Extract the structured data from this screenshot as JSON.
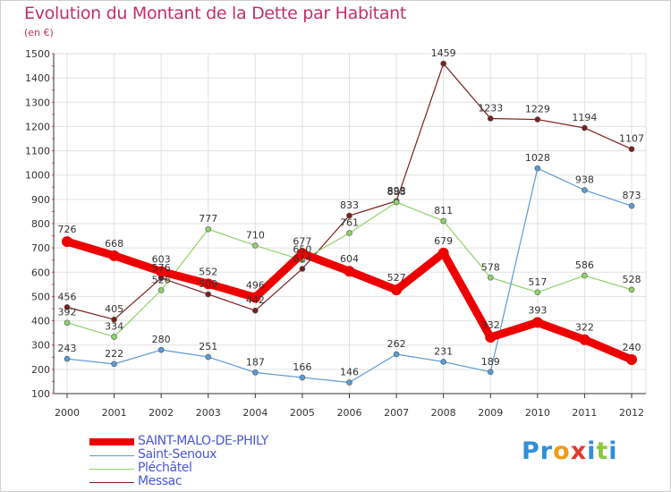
{
  "title": "Evolution du Montant de la Dette par Habitant",
  "unit": "(en €)",
  "logo": {
    "text": "Proxiti",
    "letter_colors": [
      "#2f8fd8",
      "#2f8fd8",
      "#f39a1c",
      "#e23a2c",
      "#2f8fd8",
      "#8cc63f",
      "#2f8fd8"
    ]
  },
  "chart_data": {
    "type": "line",
    "x": [
      "2000",
      "2001",
      "2002",
      "2003",
      "2004",
      "2005",
      "2006",
      "2007",
      "2008",
      "2009",
      "2010",
      "2011",
      "2012"
    ],
    "ylim": [
      100,
      1500
    ],
    "yticks": [
      100,
      200,
      300,
      400,
      500,
      600,
      700,
      800,
      900,
      1000,
      1100,
      1200,
      1300,
      1400,
      1500
    ],
    "grid": true,
    "legend_position": "bottom-left",
    "series": [
      {
        "name": "SAINT-MALO-DE-PHILY",
        "color": "#ee0000",
        "bold": true,
        "values": [
          726,
          668,
          603,
          552,
          496,
          677,
          604,
          527,
          679,
          332,
          393,
          322,
          240
        ]
      },
      {
        "name": "Saint-Senoux",
        "color": "#5b9bd5",
        "values": [
          243,
          222,
          280,
          251,
          187,
          166,
          146,
          262,
          231,
          189,
          1028,
          938,
          873
        ]
      },
      {
        "name": "Pléchâtel",
        "color": "#8fd16a",
        "values": [
          392,
          334,
          526,
          777,
          710,
          650,
          761,
          888,
          811,
          578,
          517,
          586,
          528
        ]
      },
      {
        "name": "Messac",
        "color": "#7b1f1f",
        "values": [
          456,
          405,
          576,
          509,
          442,
          614,
          833,
          893,
          1459,
          1233,
          1229,
          1194,
          1107
        ]
      }
    ]
  }
}
